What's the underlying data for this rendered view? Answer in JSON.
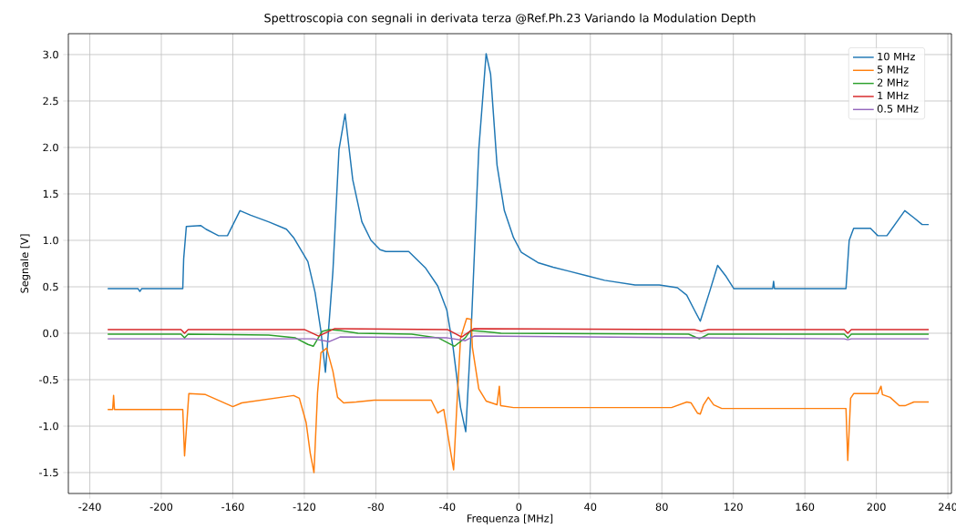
{
  "chart_data": {
    "type": "line",
    "title": "Spettroscopia con segnali in derivata terza @Ref.Ph.23 Variando la Modulation Depth",
    "xlabel": "Frequenza [MHz]",
    "ylabel": "Segnale [V]",
    "xlim": [
      -252,
      242
    ],
    "ylim": [
      -1.725,
      3.225
    ],
    "xticks": [
      -240,
      -200,
      -160,
      -120,
      -80,
      -40,
      0,
      40,
      80,
      120,
      160,
      200,
      240
    ],
    "yticks": [
      -1.5,
      {
        "value": -1,
        "label": "-1.0"
      },
      -0.5,
      {
        "value": 0,
        "label": "0.0"
      },
      0.5,
      {
        "value": 1,
        "label": "1.0"
      },
      1.5,
      {
        "value": 2,
        "label": "2.0"
      },
      2.5,
      {
        "value": 3,
        "label": "3.0"
      }
    ],
    "grid": true,
    "legend": "top right",
    "line_style": "solid",
    "series": [
      {
        "name": "10 MHz",
        "color": "#1f77b4",
        "x": [
          -230,
          -213,
          -212,
          -211,
          -188,
          -187.5,
          -186,
          -178,
          -175,
          -168,
          -163,
          -156,
          -150,
          -140,
          -130,
          -126,
          -118,
          -114,
          -110.7,
          -108.2,
          -104,
          -100.6,
          -97.2,
          -92.9,
          -87.8,
          -82.7,
          -77.6,
          -74.4,
          -61.6,
          -52.1,
          -45.4,
          -40.3,
          -36.8,
          -32.6,
          -29.7,
          -26.7,
          -22.4,
          -18.3,
          -15.8,
          -12.2,
          -8.1,
          -3.0,
          1.4,
          10.7,
          19.2,
          27.6,
          37.8,
          48,
          65,
          78.6,
          88.7,
          93.9,
          98.2,
          101.5,
          106.6,
          111.2,
          116,
          120.3,
          142,
          142.5,
          143,
          183,
          184.8,
          187.3,
          196.7,
          200.8,
          205.9,
          215.9,
          221.2,
          225.6,
          229.3
        ],
        "values": [
          0.48,
          0.48,
          0.45,
          0.48,
          0.48,
          0.8,
          1.15,
          1.16,
          1.12,
          1.05,
          1.05,
          1.32,
          1.27,
          1.2,
          1.12,
          1.03,
          0.77,
          0.44,
          0.02,
          -0.42,
          0.67,
          1.98,
          2.36,
          1.65,
          1.2,
          1.0,
          0.9,
          0.88,
          0.88,
          0.7,
          0.51,
          0.25,
          -0.15,
          -0.8,
          -1.06,
          0.02,
          1.98,
          3.01,
          2.79,
          1.81,
          1.32,
          1.03,
          0.87,
          0.76,
          0.71,
          0.67,
          0.62,
          0.57,
          0.52,
          0.52,
          0.49,
          0.41,
          0.25,
          0.13,
          0.44,
          0.73,
          0.61,
          0.48,
          0.48,
          0.56,
          0.48,
          0.48,
          1.0,
          1.13,
          1.13,
          1.05,
          1.05,
          1.32,
          1.24,
          1.17,
          1.17
        ]
      },
      {
        "name": "5 MHz",
        "color": "#ff7f0e",
        "x": [
          -230,
          -227.2,
          -226.7,
          -226.2,
          -188,
          -187,
          -184.6,
          -175.3,
          -160,
          -155,
          -126,
          -122.8,
          -119,
          -116.7,
          -114.6,
          -112.6,
          -110.7,
          -107.5,
          -104,
          -101.4,
          -98,
          -91,
          -81,
          -49,
          -45.4,
          -42,
          -39.4,
          -36.5,
          -34.3,
          -32.6,
          -29.2,
          -26.7,
          -26,
          -22.4,
          -18.3,
          -12.2,
          -10.9,
          -10.2,
          -3,
          85.4,
          94,
          96.4,
          99.9,
          101.5,
          103.3,
          106,
          109,
          113.5,
          183,
          184,
          185.6,
          187.3,
          200.8,
          202.6,
          203.4,
          207.7,
          212.8,
          216,
          221,
          229.3
        ],
        "values": [
          -0.82,
          -0.82,
          -0.67,
          -0.82,
          -0.82,
          -1.32,
          -0.65,
          -0.66,
          -0.79,
          -0.75,
          -0.67,
          -0.7,
          -0.96,
          -1.29,
          -1.5,
          -0.64,
          -0.21,
          -0.16,
          -0.41,
          -0.69,
          -0.75,
          -0.74,
          -0.72,
          -0.72,
          -0.86,
          -0.82,
          -1.13,
          -1.47,
          -0.64,
          -0.05,
          0.16,
          0.15,
          -0.15,
          -0.6,
          -0.73,
          -0.77,
          -0.57,
          -0.78,
          -0.8,
          -0.8,
          -0.74,
          -0.75,
          -0.86,
          -0.87,
          -0.77,
          -0.69,
          -0.77,
          -0.81,
          -0.81,
          -1.37,
          -0.7,
          -0.65,
          -0.65,
          -0.57,
          -0.66,
          -0.69,
          -0.78,
          -0.78,
          -0.74,
          -0.74
        ]
      },
      {
        "name": "2 MHz",
        "color": "#2ca02c",
        "x": [
          -230,
          -189,
          -187,
          -185,
          -140,
          -125,
          -118,
          -115,
          -110,
          -106,
          -100,
          -90,
          -60,
          -45,
          -36,
          -30,
          -27,
          -20,
          -10,
          95,
          101,
          106,
          182,
          184,
          186,
          229.3
        ],
        "values": [
          -0.01,
          -0.01,
          -0.05,
          -0.01,
          -0.02,
          -0.05,
          -0.12,
          -0.14,
          0.02,
          0.04,
          0.03,
          0.0,
          -0.01,
          -0.05,
          -0.14,
          -0.05,
          0.03,
          0.02,
          0.0,
          -0.01,
          -0.06,
          -0.01,
          -0.01,
          -0.05,
          -0.01,
          -0.01
        ]
      },
      {
        "name": "1 MHz",
        "color": "#d62728",
        "x": [
          -230,
          -189,
          -187,
          -185,
          -120,
          -112,
          -103,
          -40,
          -32,
          -25,
          98,
          102,
          106,
          182,
          184,
          186,
          229.3
        ],
        "values": [
          0.04,
          0.04,
          0.0,
          0.04,
          0.04,
          -0.03,
          0.05,
          0.04,
          -0.04,
          0.05,
          0.04,
          0.02,
          0.04,
          0.04,
          0.0,
          0.04,
          0.04
        ]
      },
      {
        "name": "0.5 MHz",
        "color": "#9467bd",
        "x": [
          -230,
          -115,
          -106,
          -100,
          -40,
          -30,
          -25,
          100,
          182,
          184,
          186,
          229.3
        ],
        "values": [
          -0.06,
          -0.06,
          -0.09,
          -0.04,
          -0.05,
          -0.08,
          -0.03,
          -0.05,
          -0.06,
          -0.07,
          -0.06,
          -0.06
        ]
      }
    ]
  }
}
